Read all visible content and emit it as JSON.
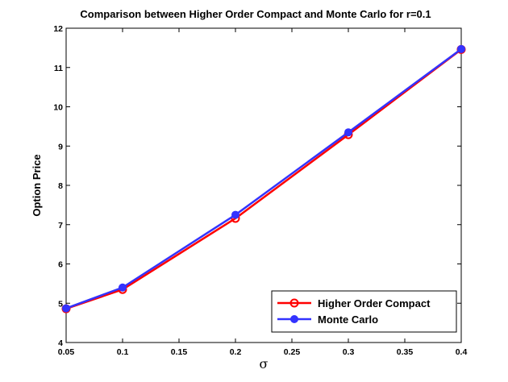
{
  "chart_data": {
    "type": "line",
    "title": "Comparison between Higher Order Compact and Monte Carlo for r=0.1",
    "xlabel": "σ",
    "ylabel": "Option Price",
    "xlim": [
      0.05,
      0.4
    ],
    "ylim": [
      4,
      12
    ],
    "xticks": [
      0.05,
      0.1,
      0.15,
      0.2,
      0.25,
      0.3,
      0.35,
      0.4
    ],
    "xtick_labels": [
      "0.05",
      "0.1",
      "0.15",
      "0.2",
      "0.25",
      "0.3",
      "0.35",
      "0.4"
    ],
    "yticks": [
      4,
      5,
      6,
      7,
      8,
      9,
      10,
      11,
      12
    ],
    "ytick_labels": [
      "4",
      "5",
      "6",
      "7",
      "8",
      "9",
      "10",
      "11",
      "12"
    ],
    "grid": false,
    "legend_position": "bottom-right",
    "series": [
      {
        "name": "Higher Order Compact",
        "color": "#ff0000",
        "marker": "open-circle",
        "x": [
          0.05,
          0.1,
          0.2,
          0.3,
          0.4
        ],
        "y": [
          4.86,
          5.35,
          7.16,
          9.29,
          11.46
        ]
      },
      {
        "name": "Monte Carlo",
        "color": "#3333ff",
        "marker": "filled-circle",
        "x": [
          0.05,
          0.1,
          0.2,
          0.3,
          0.4
        ],
        "y": [
          4.87,
          5.4,
          7.25,
          9.35,
          11.47
        ]
      }
    ]
  }
}
